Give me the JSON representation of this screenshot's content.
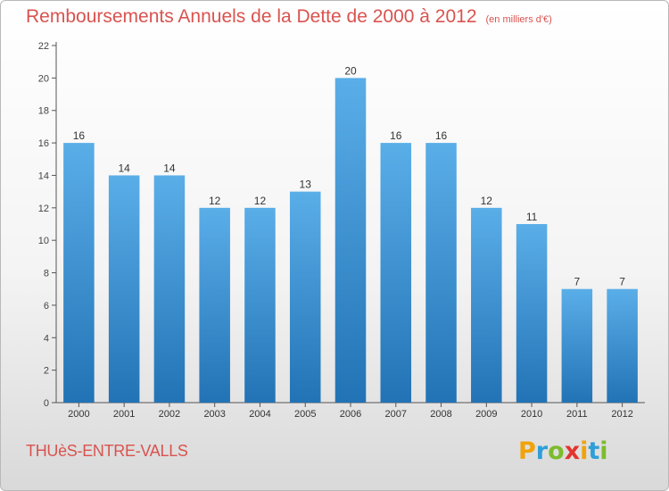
{
  "title": "Remboursements Annuels de la Dette de 2000 à 2012",
  "unit_note": "(en milliers d'€)",
  "commune": "THUèS-ENTRE-VALLS",
  "logo": {
    "text": "Proxiti",
    "colors": [
      "#f0a30a",
      "#2e9fd8",
      "#7cbc2c",
      "#e3342f"
    ]
  },
  "colors": {
    "title": "#d9534f",
    "bar_top": "#5aaee8",
    "bar_bottom": "#2273b5",
    "axis": "#555555"
  },
  "chart_data": {
    "type": "bar",
    "title": "Remboursements Annuels de la Dette de 2000 à 2012",
    "xlabel": "",
    "ylabel": "",
    "categories": [
      "2000",
      "2001",
      "2002",
      "2003",
      "2004",
      "2005",
      "2006",
      "2007",
      "2008",
      "2009",
      "2010",
      "2011",
      "2012"
    ],
    "values": [
      16,
      14,
      14,
      12,
      12,
      13,
      20,
      16,
      16,
      12,
      11,
      7,
      7
    ],
    "ylim": [
      0,
      22
    ],
    "yticks": [
      0,
      2,
      4,
      6,
      8,
      10,
      12,
      14,
      16,
      18,
      20,
      22
    ],
    "grid": false,
    "legend": "none"
  }
}
